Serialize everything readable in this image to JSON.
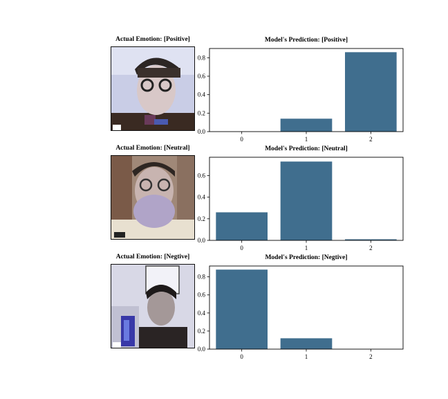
{
  "chart_data": [
    {
      "type": "bar",
      "image_title": "Actual Emotion: [Positive]",
      "title": "Model's Prediction: [Positive]",
      "categories": [
        "0",
        "1",
        "2"
      ],
      "values": [
        0.0,
        0.14,
        0.86
      ],
      "ylim": [
        0,
        0.9
      ],
      "yticks": [
        "0.0",
        "0.2",
        "0.4",
        "0.6",
        "0.8"
      ],
      "bar_color": "#406e8e"
    },
    {
      "type": "bar",
      "image_title": "Actual Emotion: [Neutral]",
      "title": "Model's Prediction: [Neutral]",
      "categories": [
        "0",
        "1",
        "2"
      ],
      "values": [
        0.26,
        0.73,
        0.01
      ],
      "ylim": [
        0,
        0.77
      ],
      "yticks": [
        "0.0",
        "0.2",
        "0.4",
        "0.6"
      ],
      "bar_color": "#406e8e"
    },
    {
      "type": "bar",
      "image_title": "Actual Emotion: [Negtive]",
      "title": "Model's Prediction: [Negtive]",
      "categories": [
        "0",
        "1",
        "2"
      ],
      "values": [
        0.88,
        0.12,
        0.0
      ],
      "ylim": [
        0,
        0.92
      ],
      "yticks": [
        "0.0",
        "0.2",
        "0.4",
        "0.6",
        "0.8"
      ],
      "bar_color": "#406e8e"
    }
  ]
}
